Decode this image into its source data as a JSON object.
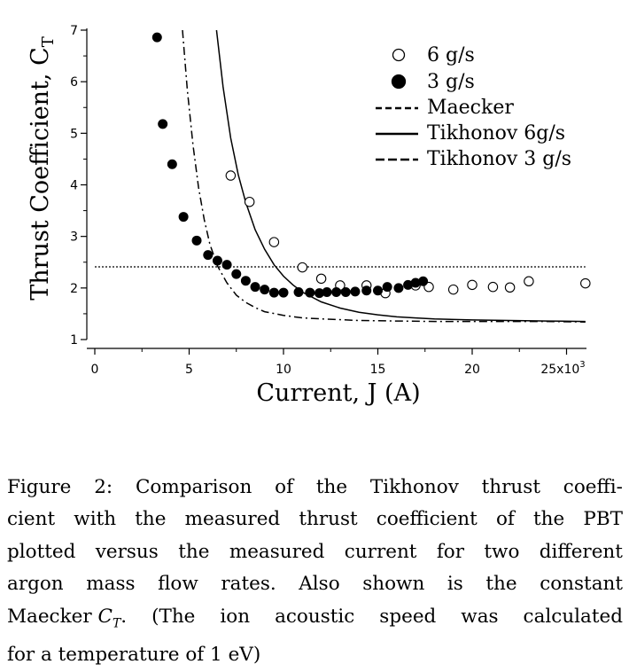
{
  "chart_data": {
    "type": "scatter",
    "xlabel": "Current, J  (A)",
    "ylabel": "Thrust Coefficient, C",
    "ylabel_sub": "T",
    "xlim": [
      0,
      26000
    ],
    "ylim": [
      1,
      7
    ],
    "x_ticks": [
      0,
      5000,
      10000,
      15000,
      20000,
      25000
    ],
    "x_tick_labels": [
      "0",
      "5",
      "10",
      "15",
      "20",
      "25x10"
    ],
    "x_tick_exponent": "3",
    "y_ticks": [
      1,
      2,
      3,
      4,
      5,
      6,
      7
    ],
    "y_tick_labels": [
      "1",
      "2",
      "3",
      "4",
      "5",
      "6",
      "7"
    ],
    "legend_position": "top-right",
    "series": [
      {
        "name": "6 g/s",
        "kind": "points",
        "marker": "open-circle",
        "x": [
          7200,
          8200,
          9500,
          11000,
          12000,
          13000,
          14400,
          15400,
          17000,
          17700,
          19000,
          20000,
          21100,
          22000,
          23000,
          26000
        ],
        "y": [
          4.18,
          3.67,
          2.89,
          2.4,
          2.18,
          2.05,
          2.05,
          1.9,
          2.05,
          2.02,
          1.97,
          2.06,
          2.02,
          2.01,
          2.13,
          2.09
        ]
      },
      {
        "name": "3 g/s",
        "kind": "points",
        "marker": "filled-circle",
        "x": [
          3300,
          3600,
          4100,
          4700,
          5400,
          6000,
          6500,
          7000,
          7500,
          8000,
          8500,
          9000,
          9500,
          10000,
          10800,
          11400,
          11900,
          12300,
          12800,
          13300,
          13800,
          14400,
          15000,
          15500,
          16100,
          16600,
          17000,
          17400
        ],
        "y": [
          6.86,
          5.18,
          4.4,
          3.38,
          2.92,
          2.64,
          2.53,
          2.45,
          2.27,
          2.14,
          2.02,
          1.97,
          1.91,
          1.91,
          1.92,
          1.91,
          1.9,
          1.92,
          1.92,
          1.92,
          1.93,
          1.95,
          1.95,
          2.02,
          2.0,
          2.06,
          2.1,
          2.13
        ]
      },
      {
        "name": "Maecker",
        "kind": "line",
        "dash": "dotted",
        "x": [
          0,
          26000
        ],
        "y": [
          2.41,
          2.41
        ]
      },
      {
        "name": "Tikhonov 6g/s",
        "kind": "line",
        "dash": "solid",
        "x": [
          6450,
          6800,
          7200,
          7600,
          8000,
          8500,
          9000,
          9500,
          10000,
          10500,
          11000,
          12000,
          13000,
          14000,
          15000,
          16000,
          17000,
          18000,
          20000,
          22000,
          24000,
          26000
        ],
        "y": [
          7.0,
          5.9,
          4.91,
          4.2,
          3.66,
          3.13,
          2.75,
          2.45,
          2.23,
          2.06,
          1.92,
          1.73,
          1.61,
          1.53,
          1.48,
          1.44,
          1.42,
          1.4,
          1.38,
          1.37,
          1.36,
          1.35
        ]
      },
      {
        "name": "Tikhonov 3 g/s",
        "kind": "line",
        "dash": "dash-dot",
        "x": [
          4650,
          4900,
          5200,
          5500,
          5800,
          6100,
          6500,
          7000,
          7500,
          8000,
          8500,
          9000,
          10000,
          11000,
          12000,
          14000,
          16000,
          18000,
          20000,
          22000,
          24000,
          26000
        ],
        "y": [
          7.0,
          5.85,
          4.78,
          3.95,
          3.33,
          2.85,
          2.43,
          2.1,
          1.86,
          1.72,
          1.62,
          1.54,
          1.47,
          1.42,
          1.4,
          1.37,
          1.36,
          1.35,
          1.35,
          1.35,
          1.35,
          1.34
        ]
      }
    ]
  },
  "caption": {
    "lines": [
      "Figure 2: Comparison of the Tikhonov thrust coeffi-",
      "cient with the measured thrust coefficient of the PBT",
      "plotted versus the measured current for two different",
      "argon mass flow rates.  Also shown is the constant",
      "Maecker ",
      "for a temperature of 1 eV)"
    ],
    "math_symbol": "C",
    "math_sub": "T",
    "line5_after": ".  (The ion acoustic speed was calculated"
  }
}
